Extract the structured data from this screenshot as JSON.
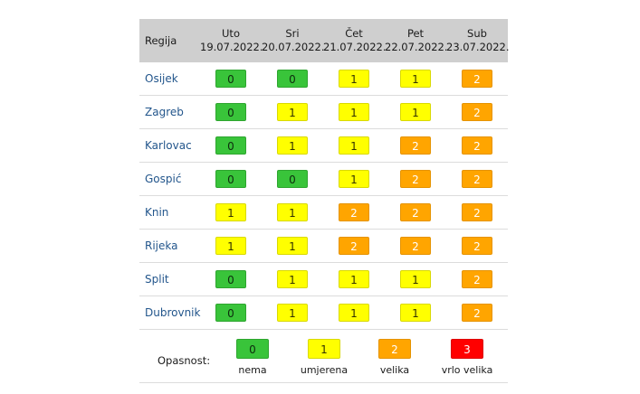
{
  "table": {
    "region_header": "Regija",
    "days": [
      {
        "day": "Uto",
        "date": "19.07.2022."
      },
      {
        "day": "Sri",
        "date": "20.07.2022."
      },
      {
        "day": "Čet",
        "date": "21.07.2022."
      },
      {
        "day": "Pet",
        "date": "22.07.2022."
      },
      {
        "day": "Sub",
        "date": "23.07.2022."
      }
    ],
    "rows": [
      {
        "region": "Osijek",
        "levels": [
          "0",
          "0",
          "1",
          "1",
          "2"
        ]
      },
      {
        "region": "Zagreb",
        "levels": [
          "0",
          "1",
          "1",
          "1",
          "2"
        ]
      },
      {
        "region": "Karlovac",
        "levels": [
          "0",
          "1",
          "1",
          "2",
          "2"
        ]
      },
      {
        "region": "Gospić",
        "levels": [
          "0",
          "0",
          "1",
          "2",
          "2"
        ]
      },
      {
        "region": "Knin",
        "levels": [
          "1",
          "1",
          "2",
          "2",
          "2"
        ]
      },
      {
        "region": "Rijeka",
        "levels": [
          "1",
          "1",
          "2",
          "2",
          "2"
        ]
      },
      {
        "region": "Split",
        "levels": [
          "0",
          "1",
          "1",
          "1",
          "2"
        ]
      },
      {
        "region": "Dubrovnik",
        "levels": [
          "0",
          "1",
          "1",
          "1",
          "2"
        ]
      }
    ]
  },
  "legend": {
    "label": "Opasnost:",
    "items": [
      {
        "level": "0",
        "text": "nema",
        "color": "#39c43a"
      },
      {
        "level": "1",
        "text": "umjerena",
        "color": "#ffff00"
      },
      {
        "level": "2",
        "text": "velika",
        "color": "#ffa500"
      },
      {
        "level": "3",
        "text": "vrlo velika",
        "color": "#ff0000"
      }
    ]
  }
}
